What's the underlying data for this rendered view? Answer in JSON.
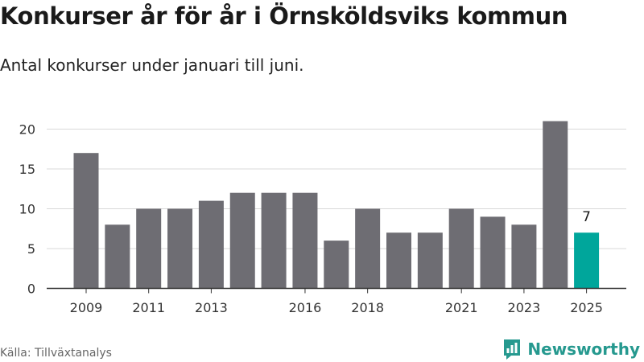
{
  "header": {
    "title": "Konkurser år för år i Örnsköldsviks kommun",
    "subtitle": "Antal konkurser under januari till juni."
  },
  "footer": {
    "source": "Källa: Tillväxtanalys",
    "brand": "Newsworthy"
  },
  "colors": {
    "bar": "#6e6d73",
    "highlight": "#00a69b",
    "grid": "#d9d9d9",
    "axis": "#333333",
    "brand": "#26998f"
  },
  "icons": {
    "brand_logo": "newsworthy-chart-icon"
  },
  "chart_data": {
    "type": "bar",
    "categories": [
      "2009",
      "2010",
      "2011",
      "2012",
      "2013",
      "2014",
      "2015",
      "2016",
      "2017",
      "2018",
      "2019",
      "2020",
      "2021",
      "2022",
      "2023",
      "2024",
      "2025"
    ],
    "values": [
      17,
      8,
      10,
      10,
      11,
      12,
      12,
      12,
      6,
      10,
      7,
      7,
      10,
      9,
      8,
      21,
      7
    ],
    "tick_labels_x": [
      "2009",
      "2011",
      "2013",
      "2016",
      "2018",
      "2021",
      "2023",
      "2025"
    ],
    "y_ticks": [
      0,
      5,
      10,
      15,
      20
    ],
    "ylim": [
      0,
      22
    ],
    "grid": true,
    "highlight_category": "2025",
    "data_labels": [
      {
        "category": "2025",
        "text": "7"
      }
    ],
    "title": "Konkurser år för år i Örnsköldsviks kommun",
    "xlabel": "",
    "ylabel": ""
  }
}
